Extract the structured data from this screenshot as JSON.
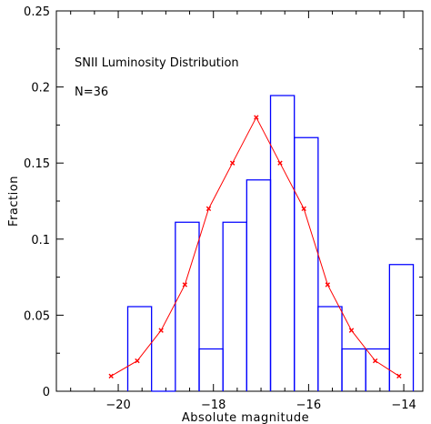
{
  "chart_data": {
    "type": "histogram",
    "xlabel": "Absolute magnitude",
    "ylabel": "Fraction",
    "xlim": [
      -21.3,
      -13.6
    ],
    "ylim": [
      0,
      0.25
    ],
    "x_ticks": [
      -20,
      -18,
      -16,
      -14
    ],
    "x_tick_labels": [
      "−20",
      "−18",
      "−16",
      "−14"
    ],
    "y_ticks": [
      0,
      0.05,
      0.1,
      0.15,
      0.2,
      0.25
    ],
    "y_tick_labels": [
      "0",
      "0.05",
      "0.1",
      "0.15",
      "0.2",
      "0.25"
    ],
    "annotations": [
      "SNII Luminosity Distribution",
      "N=36"
    ],
    "histogram": {
      "color": "#0000ff",
      "bins": [
        {
          "x0": -19.8,
          "x1": -19.3,
          "value": 0.0556
        },
        {
          "x0": -19.3,
          "x1": -18.8,
          "value": 0
        },
        {
          "x0": -18.8,
          "x1": -18.3,
          "value": 0.1111
        },
        {
          "x0": -18.3,
          "x1": -17.8,
          "value": 0.0278
        },
        {
          "x0": -17.8,
          "x1": -17.3,
          "value": 0.1111
        },
        {
          "x0": -17.3,
          "x1": -16.8,
          "value": 0.1389
        },
        {
          "x0": -16.8,
          "x1": -16.3,
          "value": 0.1944
        },
        {
          "x0": -16.3,
          "x1": -15.8,
          "value": 0.1667
        },
        {
          "x0": -15.8,
          "x1": -15.3,
          "value": 0.0556
        },
        {
          "x0": -15.3,
          "x1": -14.8,
          "value": 0.0278
        },
        {
          "x0": -14.8,
          "x1": -14.3,
          "value": 0.0278
        },
        {
          "x0": -14.3,
          "x1": -13.8,
          "value": 0.0833
        }
      ]
    },
    "line_series": {
      "color": "#ff0000",
      "x": [
        -20.15,
        -19.6,
        -19.1,
        -18.6,
        -18.1,
        -17.6,
        -17.1,
        -16.6,
        -16.1,
        -15.6,
        -15.1,
        -14.6,
        -14.1
      ],
      "y": [
        0.01,
        0.02,
        0.04,
        0.07,
        0.12,
        0.15,
        0.18,
        0.15,
        0.12,
        0.07,
        0.04,
        0.02,
        0.01
      ]
    }
  }
}
